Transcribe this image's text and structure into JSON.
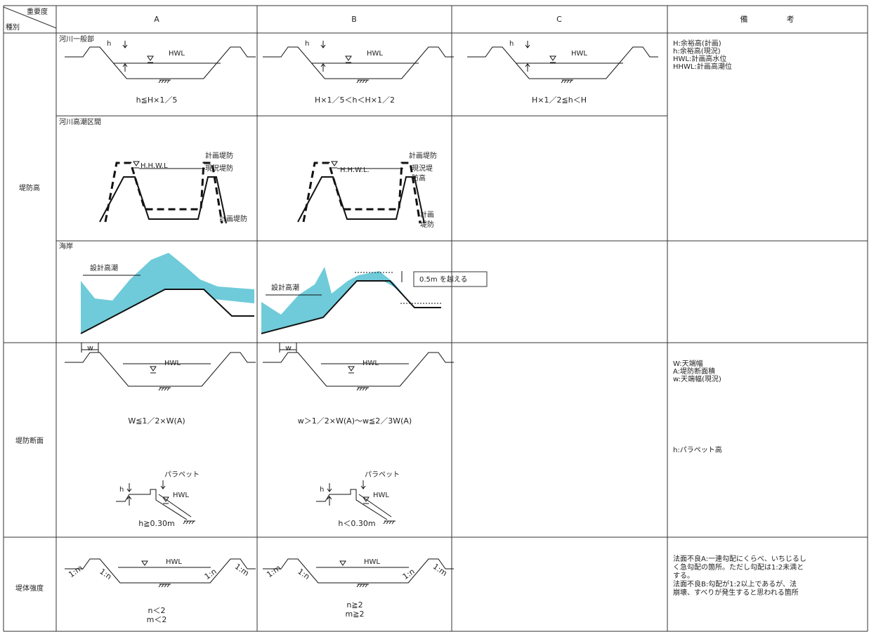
{
  "header": {
    "importance": "重要度",
    "category": "種別",
    "col_a": "A",
    "col_b": "B",
    "col_c": "C",
    "remarks": "備　　　　　考"
  },
  "levee_height": {
    "label": "堤防高",
    "general": {
      "title": "河川一般部",
      "a": {
        "h": "h",
        "hwl": "HWL",
        "caption": "h≦H×1／5"
      },
      "b": {
        "h": "h",
        "hwl": "HWL",
        "caption": "H×1／5＜h＜H×1／2"
      },
      "c": {
        "h": "h",
        "hwl": "HWL",
        "caption": "H×1／2≦h＜H"
      }
    },
    "storm_surge": {
      "title": "河川高潮区間",
      "a": {
        "hhwl": "H.H.W.L",
        "planned": "計画堤防",
        "existing": "現況堤防",
        "planned_lower": "計画堤防"
      },
      "b": {
        "hhwl": "H.H.W.L.",
        "planned": "計画堤防",
        "existing": [
          "現況堤",
          "防高"
        ],
        "planned_lower": [
          "計画",
          "堤防"
        ]
      }
    },
    "coast": {
      "title": "海岸",
      "a": {
        "surge": "設計高潮"
      },
      "b": {
        "surge": "設計高潮",
        "note": "0.5m を越える"
      }
    },
    "remarks": [
      "H:余裕高(計画)",
      "h:余裕高(現況)",
      "HWL:計画高水位",
      "HHWL:計画高潮位"
    ]
  },
  "levee_section": {
    "label": "堤防断面",
    "a": {
      "w": "w",
      "hwl": "HWL",
      "caption": "W≦1／2×W(A)",
      "parapet": "パラペット",
      "h": "h",
      "hwl2": "HWL",
      "caption2": "h≧0.30m"
    },
    "b": {
      "w": "w",
      "hwl": "HWL",
      "caption": "w＞1／2×W(A)～w≦2／3W(A)",
      "parapet": "パラペット",
      "h": "h",
      "hwl2": "HWL",
      "caption2": "h＜0.30m"
    },
    "remarks": [
      "W:天端幅",
      "A:堤防断面積",
      "w:天端幅(現況)"
    ],
    "remarks2": "h:パラペット高"
  },
  "levee_strength": {
    "label": "堤体強度",
    "a": {
      "hwl": "HWL",
      "slopes": [
        "1:m",
        "1:n",
        "1:n",
        "1:m"
      ],
      "caption": [
        "n＜2",
        "m＜2"
      ]
    },
    "b": {
      "hwl": "HWL",
      "slopes": [
        "1:m",
        "1:n",
        "1:n",
        "1:m"
      ],
      "caption": [
        "n≧2",
        "m≧2"
      ]
    },
    "remarks": [
      "法面不良A:一連勾配にくらべ、いちじるし",
      "く急勾配の箇所。ただし勾配は1:2未満と",
      "する。",
      "法面不良B:勾配が1:2以上であるが、法",
      "崩壊、すべりが発生すると思われる箇所"
    ]
  }
}
